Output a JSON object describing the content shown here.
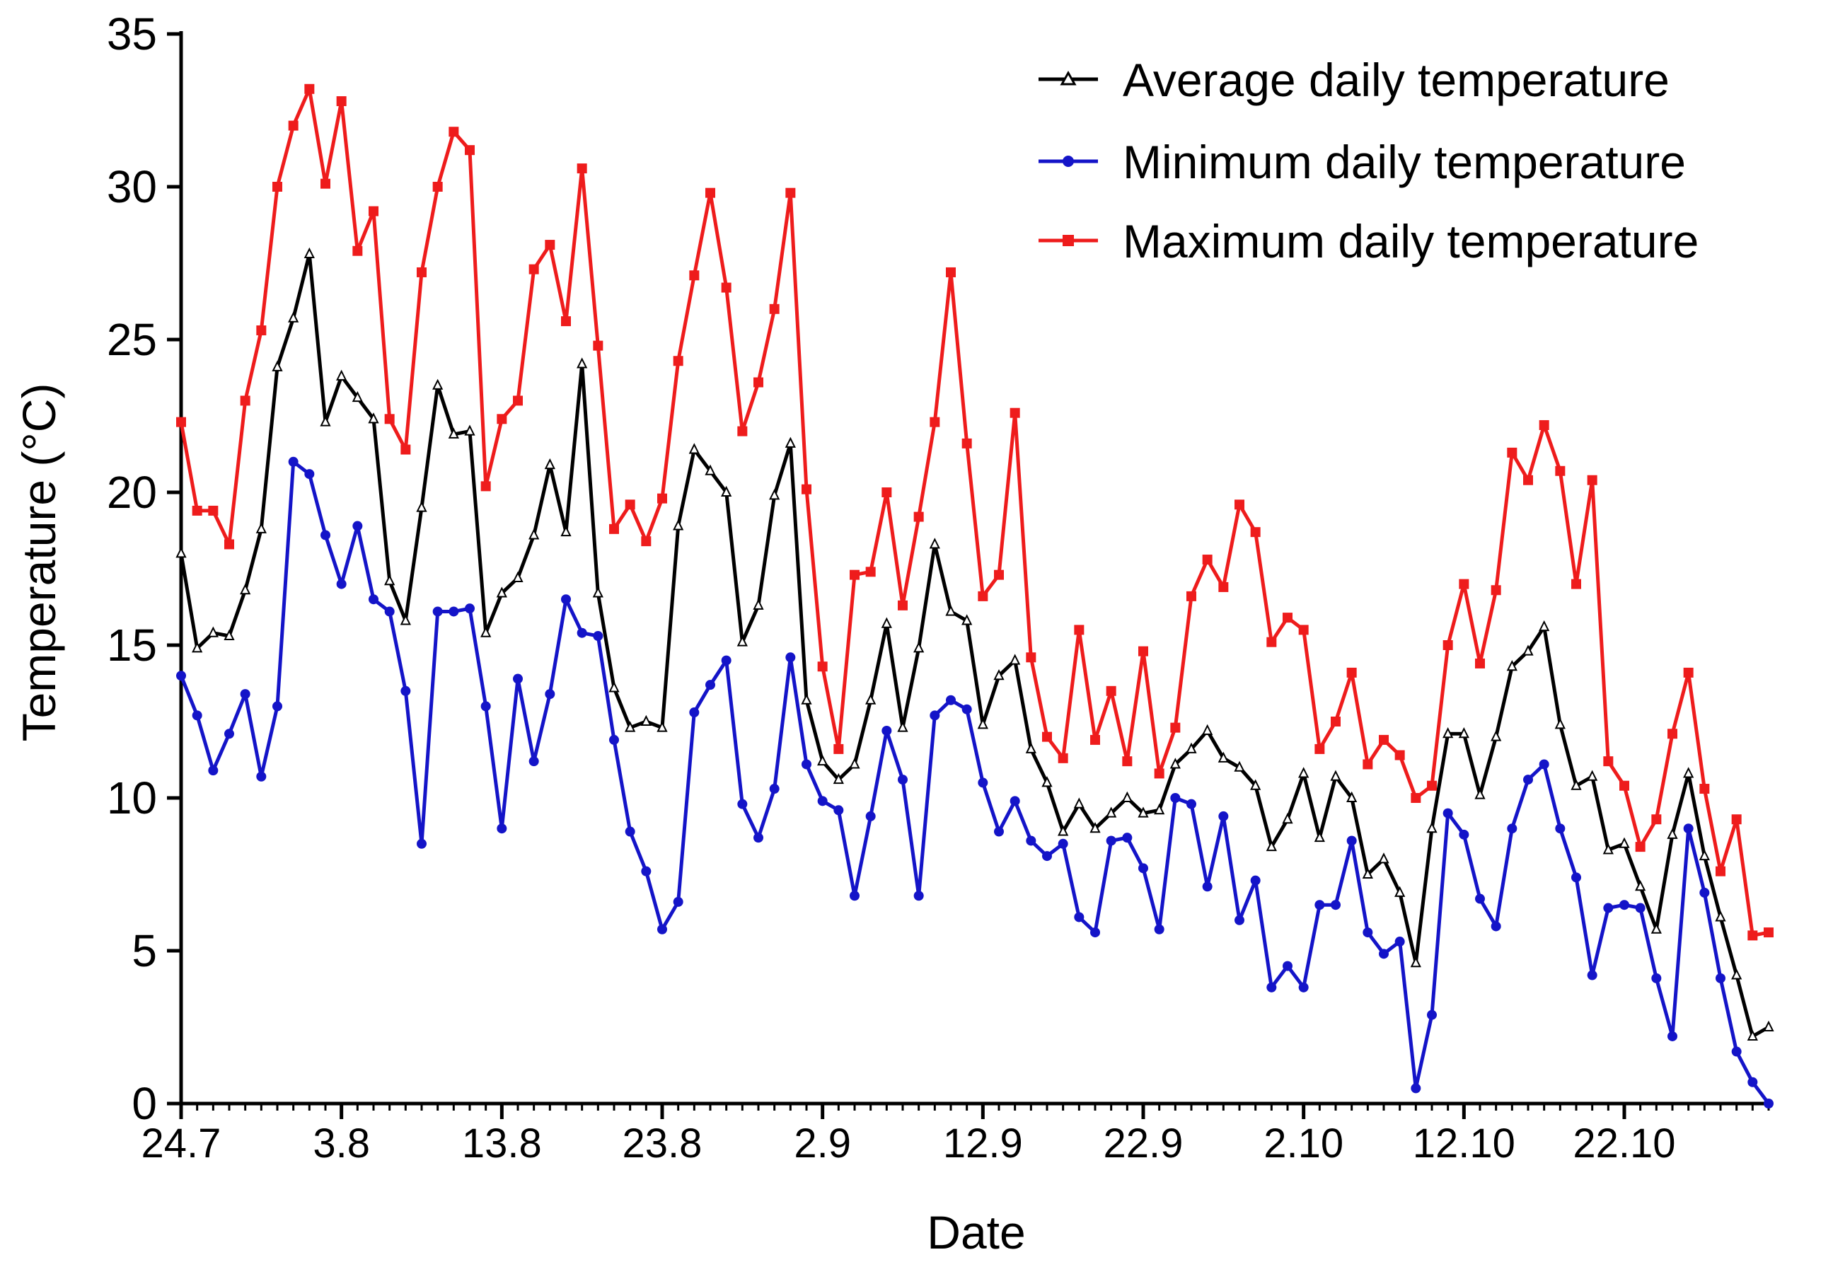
{
  "chart_data": {
    "type": "line",
    "title": "",
    "xlabel": "Date",
    "ylabel": "Temperature (°C)",
    "ylim": [
      0,
      35
    ],
    "yticks": [
      0,
      5,
      10,
      15,
      20,
      25,
      30,
      35
    ],
    "x_start": 0,
    "x_end": 99,
    "xticks": [
      {
        "label": "24.7",
        "day": 0
      },
      {
        "label": "3.8",
        "day": 10
      },
      {
        "label": "13.8",
        "day": 20
      },
      {
        "label": "23.8",
        "day": 30
      },
      {
        "label": "2.9",
        "day": 40
      },
      {
        "label": "12.9",
        "day": 50
      },
      {
        "label": "22.9",
        "day": 60
      },
      {
        "label": "2.10",
        "day": 70
      },
      {
        "label": "12.10",
        "day": 80
      },
      {
        "label": "22.10",
        "day": 90
      }
    ],
    "legend_position": "top-right",
    "series": [
      {
        "name": "Average daily temperature",
        "color": "#000000",
        "marker": "triangle",
        "values": [
          18.0,
          14.9,
          15.4,
          15.3,
          16.8,
          18.8,
          24.1,
          25.7,
          27.8,
          22.3,
          23.8,
          23.1,
          22.4,
          17.1,
          15.8,
          19.5,
          23.5,
          21.9,
          22.0,
          15.4,
          16.7,
          17.2,
          18.6,
          20.9,
          18.7,
          24.2,
          16.7,
          13.6,
          12.3,
          12.5,
          12.3,
          18.9,
          21.4,
          20.7,
          20.0,
          15.1,
          16.3,
          19.9,
          21.6,
          13.2,
          11.2,
          10.6,
          11.1,
          13.2,
          15.7,
          12.3,
          14.9,
          18.3,
          16.1,
          15.8,
          12.4,
          14.0,
          14.5,
          11.6,
          10.5,
          8.9,
          9.8,
          9.0,
          9.5,
          10.0,
          9.5,
          9.6,
          11.1,
          11.6,
          12.2,
          11.3,
          11.0,
          10.4,
          8.4,
          9.3,
          10.8,
          8.7,
          10.7,
          10.0,
          7.5,
          8.0,
          6.9,
          4.6,
          9.0,
          12.1,
          12.1,
          10.1,
          12.0,
          14.3,
          14.8,
          15.6,
          12.4,
          10.4,
          10.7,
          8.3,
          8.5,
          7.1,
          5.7,
          8.8,
          10.8,
          8.1,
          6.1,
          4.2,
          2.2,
          2.5
        ]
      },
      {
        "name": "Minimum daily temperature",
        "color": "#1414c8",
        "marker": "circle",
        "values": [
          14.0,
          12.7,
          10.9,
          12.1,
          13.4,
          10.7,
          13.0,
          21.0,
          20.6,
          18.6,
          17.0,
          18.9,
          16.5,
          16.1,
          13.5,
          8.5,
          16.1,
          16.1,
          16.2,
          13.0,
          9.0,
          13.9,
          11.2,
          13.4,
          16.5,
          15.4,
          15.3,
          11.9,
          8.9,
          7.6,
          5.7,
          6.6,
          12.8,
          13.7,
          14.5,
          9.8,
          8.7,
          10.3,
          14.6,
          11.1,
          9.9,
          9.6,
          6.8,
          9.4,
          12.2,
          10.6,
          6.8,
          12.7,
          13.2,
          12.9,
          10.5,
          8.9,
          9.9,
          8.6,
          8.1,
          8.5,
          6.1,
          5.6,
          8.6,
          8.7,
          7.7,
          5.7,
          10.0,
          9.8,
          7.1,
          9.4,
          6.0,
          7.3,
          3.8,
          4.5,
          3.8,
          6.5,
          6.5,
          8.6,
          5.6,
          4.9,
          5.3,
          0.5,
          2.9,
          9.5,
          8.8,
          6.7,
          5.8,
          9.0,
          10.6,
          11.1,
          9.0,
          7.4,
          4.2,
          6.4,
          6.5,
          6.4,
          4.1,
          2.2,
          9.0,
          6.9,
          4.1,
          1.7,
          0.7,
          0.0
        ]
      },
      {
        "name": "Maximum daily temperature",
        "color": "#ee1c1c",
        "marker": "square",
        "values": [
          22.3,
          19.4,
          19.4,
          18.3,
          23.0,
          25.3,
          30.0,
          32.0,
          33.2,
          30.1,
          32.8,
          27.9,
          29.2,
          22.4,
          21.4,
          27.2,
          30.0,
          31.8,
          31.2,
          20.2,
          22.4,
          23.0,
          27.3,
          28.1,
          25.6,
          30.6,
          24.8,
          18.8,
          19.6,
          18.4,
          19.8,
          24.3,
          27.1,
          29.8,
          26.7,
          22.0,
          23.6,
          26.0,
          29.8,
          20.1,
          14.3,
          11.6,
          17.3,
          17.4,
          20.0,
          16.3,
          19.2,
          22.3,
          27.2,
          21.6,
          16.6,
          17.3,
          22.6,
          14.6,
          12.0,
          11.3,
          15.5,
          11.9,
          13.5,
          11.2,
          14.8,
          10.8,
          12.3,
          16.6,
          17.8,
          16.9,
          19.6,
          18.7,
          15.1,
          15.9,
          15.5,
          11.6,
          12.5,
          14.1,
          11.1,
          11.9,
          11.4,
          10.0,
          10.4,
          15.0,
          17.0,
          14.4,
          16.8,
          21.3,
          20.4,
          22.2,
          20.7,
          17.0,
          20.4,
          11.2,
          10.4,
          8.4,
          9.3,
          12.1,
          14.1,
          10.3,
          7.6,
          9.3,
          5.5,
          5.6
        ]
      }
    ]
  }
}
